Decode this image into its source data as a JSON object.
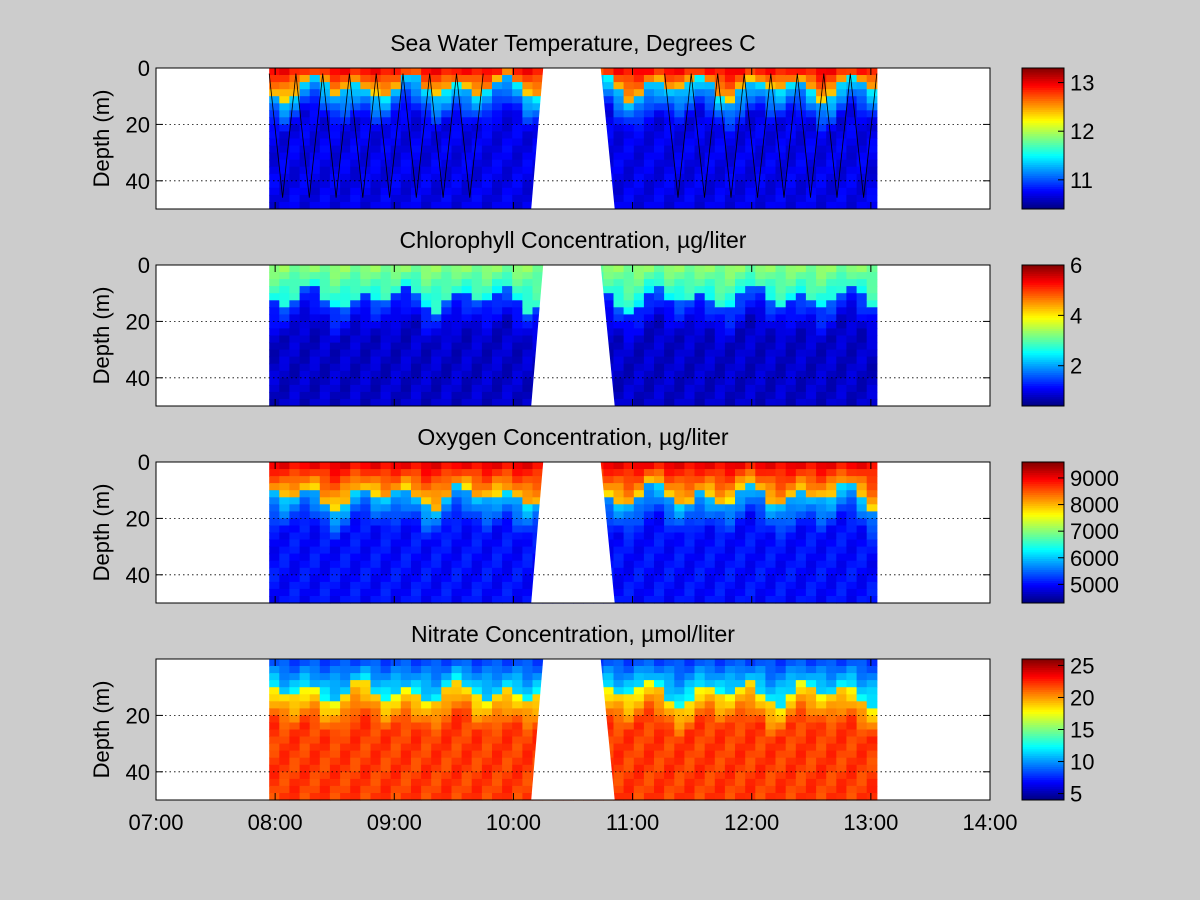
{
  "figure": {
    "background": "#cccccc",
    "colormap": "jet"
  },
  "chart_data": [
    {
      "type": "heatmap",
      "title": "Sea Water Temperature, Degrees C",
      "ylabel": "Depth (m)",
      "xlabel": "",
      "x_ticks": [
        "07:00",
        "08:00",
        "09:00",
        "10:00",
        "11:00",
        "12:00",
        "13:00",
        "14:00"
      ],
      "x_tick_labels_visible": false,
      "xlim_hours": [
        7,
        14
      ],
      "ylim": [
        50,
        0
      ],
      "y_axis_reversed": true,
      "y_ticks": [
        0,
        20,
        40
      ],
      "y_tick_labels": [
        "0",
        "20",
        "40"
      ],
      "grid": "dotted horizontal at 20 and 40",
      "colorbar": {
        "ticks": [
          11,
          12,
          13
        ],
        "tick_labels": [
          "11",
          "12",
          "13"
        ],
        "clim": [
          10.4,
          13.3
        ]
      },
      "data_extent_hours": [
        7.95,
        13.05
      ],
      "gap_hours": [
        10.25,
        10.85
      ],
      "profile": {
        "surface_value": 13.0,
        "surface_layer_depth": 7,
        "deep_value": 10.7,
        "mid_value": 11.4
      },
      "tow_yo_track": true
    },
    {
      "type": "heatmap",
      "title": "Chlorophyll Concentration, µg/liter",
      "ylabel": "Depth (m)",
      "xlabel": "",
      "x_ticks": [
        "07:00",
        "08:00",
        "09:00",
        "10:00",
        "11:00",
        "12:00",
        "13:00",
        "14:00"
      ],
      "x_tick_labels_visible": false,
      "xlim_hours": [
        7,
        14
      ],
      "ylim": [
        50,
        0
      ],
      "y_axis_reversed": true,
      "y_ticks": [
        0,
        20,
        40
      ],
      "y_tick_labels": [
        "0",
        "20",
        "40"
      ],
      "grid": "dotted horizontal at 20 and 40",
      "colorbar": {
        "ticks": [
          2,
          4,
          6
        ],
        "tick_labels": [
          "2",
          "4",
          "6"
        ],
        "clim": [
          0.4,
          6.0
        ]
      },
      "data_extent_hours": [
        7.95,
        13.05
      ],
      "gap_hours": [
        10.25,
        10.85
      ],
      "profile": {
        "surface_value": 3.3,
        "surface_layer_depth": 12,
        "deep_value": 0.8,
        "mid_value": 1.5
      },
      "tow_yo_track": false
    },
    {
      "type": "heatmap",
      "title": "Oxygen Concentration, µg/liter",
      "ylabel": "Depth (m)",
      "xlabel": "",
      "x_ticks": [
        "07:00",
        "08:00",
        "09:00",
        "10:00",
        "11:00",
        "12:00",
        "13:00",
        "14:00"
      ],
      "x_tick_labels_visible": false,
      "xlim_hours": [
        7,
        14
      ],
      "ylim": [
        50,
        0
      ],
      "y_axis_reversed": true,
      "y_ticks": [
        0,
        20,
        40
      ],
      "y_tick_labels": [
        "0",
        "20",
        "40"
      ],
      "grid": "dotted horizontal at 20 and 40",
      "colorbar": {
        "ticks": [
          5000,
          6000,
          7000,
          8000,
          9000
        ],
        "tick_labels": [
          "5000",
          "6000",
          "7000",
          "8000",
          "9000"
        ],
        "clim": [
          4300,
          9600
        ]
      },
      "data_extent_hours": [
        7.95,
        13.05
      ],
      "gap_hours": [
        10.25,
        10.85
      ],
      "profile": {
        "surface_value": 9100,
        "surface_layer_depth": 12,
        "deep_value": 5000,
        "mid_value": 6000
      },
      "tow_yo_track": false
    },
    {
      "type": "heatmap",
      "title": "Nitrate Concentration, µmol/liter",
      "ylabel": "Depth (m)",
      "xlabel": "",
      "x_ticks": [
        "07:00",
        "08:00",
        "09:00",
        "10:00",
        "11:00",
        "12:00",
        "13:00",
        "14:00"
      ],
      "x_tick_labels_visible": true,
      "xlim_hours": [
        7,
        14
      ],
      "ylim": [
        50,
        0
      ],
      "y_axis_reversed": true,
      "y_ticks": [
        20,
        40
      ],
      "y_tick_labels": [
        "20",
        "40"
      ],
      "grid": "dotted horizontal at 20 and 40",
      "colorbar": {
        "ticks": [
          5,
          10,
          15,
          20,
          25
        ],
        "tick_labels": [
          "5",
          "10",
          "15",
          "20",
          "25"
        ],
        "clim": [
          4,
          26
        ]
      },
      "data_extent_hours": [
        7.95,
        13.05
      ],
      "gap_hours": [
        10.25,
        10.85
      ],
      "profile": {
        "surface_value": 8,
        "surface_layer_depth": 12,
        "deep_value": 22,
        "mid_value": 18
      },
      "tow_yo_track": false
    }
  ]
}
